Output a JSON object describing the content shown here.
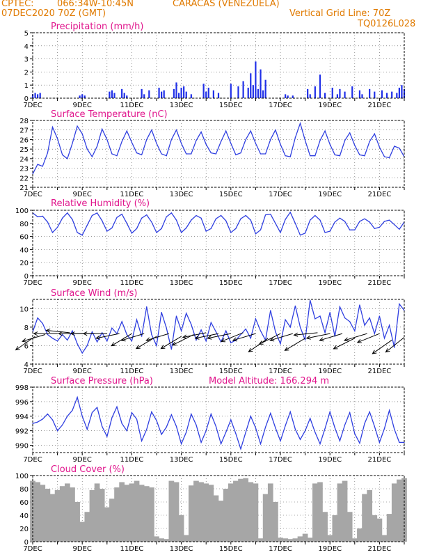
{
  "header": {
    "source": "CPTEC:",
    "coords": "066:34W-10:45N",
    "location": "CARACAS (VENEZUELA)",
    "init": "07DEC2020 70Z (GMT)",
    "grid_note": "Vertical Grid Line: 70Z",
    "code": "TQ0126L028"
  },
  "colors": {
    "header": "#e07a00",
    "panel_title": "#e0158c",
    "line": "#2f3fe0",
    "bar": "#1f2fe8",
    "cloud": "#a6a6a6"
  },
  "x_axis": {
    "ticks": [
      "7DEC",
      "9DEC",
      "11DEC",
      "13DEC",
      "15DEC",
      "17DEC",
      "19DEC",
      "21DEC"
    ],
    "day_start": 7,
    "day_end": 22
  },
  "chart_data": [
    {
      "type": "bar",
      "title": "Precipitation (mm/h)",
      "ylim": [
        0,
        5
      ],
      "yticks": [
        "0",
        "1",
        "2",
        "3",
        "4",
        "5"
      ],
      "grid": true,
      "x": [
        7.0,
        7.1,
        7.2,
        7.3,
        8.9,
        9.0,
        9.1,
        10.1,
        10.2,
        10.3,
        10.6,
        10.7,
        10.8,
        11.4,
        11.5,
        11.7,
        12.1,
        12.2,
        12.3,
        12.7,
        12.8,
        12.9,
        13.0,
        13.1,
        13.2,
        13.4,
        13.9,
        14.0,
        14.1,
        14.3,
        14.5,
        15.0,
        15.3,
        15.5,
        15.7,
        15.8,
        15.9,
        16.0,
        16.1,
        16.2,
        16.3,
        16.4,
        17.2,
        17.3,
        17.5,
        18.1,
        18.2,
        18.4,
        18.6,
        18.8,
        19.1,
        19.3,
        19.4,
        19.6,
        19.9,
        20.2,
        20.3,
        20.6,
        20.8,
        21.1,
        21.3,
        21.5,
        21.7,
        21.8,
        21.9,
        22.0
      ],
      "values": [
        0.3,
        0.4,
        0.3,
        0.4,
        0.2,
        0.3,
        0.2,
        0.5,
        0.6,
        0.4,
        0.7,
        0.4,
        0.2,
        0.7,
        0.3,
        0.6,
        0.8,
        0.5,
        0.6,
        0.7,
        1.2,
        0.4,
        0.8,
        0.9,
        0.5,
        0.3,
        1.1,
        0.5,
        0.8,
        0.6,
        0.4,
        1.1,
        0.9,
        1.3,
        0.8,
        1.9,
        1.0,
        2.8,
        0.7,
        2.2,
        0.6,
        1.4,
        0.3,
        0.2,
        0.2,
        0.7,
        0.3,
        0.9,
        1.8,
        0.4,
        0.8,
        0.3,
        0.7,
        0.5,
        0.9,
        0.6,
        0.3,
        0.7,
        0.5,
        0.6,
        0.4,
        0.5,
        0.4,
        0.8,
        1.0,
        0.7
      ]
    },
    {
      "type": "line",
      "title": "Surface Temperature (nC)",
      "ylim": [
        21,
        28
      ],
      "yticks": [
        "21",
        "22",
        "23",
        "24",
        "25",
        "26",
        "27",
        "28"
      ],
      "grid": true,
      "x": [
        7.0,
        7.2,
        7.4,
        7.6,
        7.8,
        8.0,
        8.2,
        8.4,
        8.6,
        8.8,
        9.0,
        9.2,
        9.4,
        9.6,
        9.8,
        10.0,
        10.2,
        10.4,
        10.6,
        10.8,
        11.0,
        11.2,
        11.4,
        11.6,
        11.8,
        12.0,
        12.2,
        12.4,
        12.6,
        12.8,
        13.0,
        13.2,
        13.4,
        13.6,
        13.8,
        14.0,
        14.2,
        14.4,
        14.6,
        14.8,
        15.0,
        15.2,
        15.4,
        15.6,
        15.8,
        16.0,
        16.2,
        16.4,
        16.6,
        16.8,
        17.0,
        17.2,
        17.4,
        17.6,
        17.8,
        18.0,
        18.2,
        18.4,
        18.6,
        18.8,
        19.0,
        19.2,
        19.4,
        19.6,
        19.8,
        20.0,
        20.2,
        20.4,
        20.6,
        20.8,
        21.0,
        21.2,
        21.4,
        21.6,
        21.8,
        22.0
      ],
      "values": [
        22.4,
        23.4,
        23.2,
        24.6,
        27.3,
        26.1,
        24.4,
        24.0,
        25.6,
        27.4,
        26.6,
        25.0,
        24.2,
        25.3,
        27.1,
        26.0,
        24.5,
        24.3,
        25.8,
        26.9,
        25.7,
        24.6,
        24.4,
        26.0,
        27.0,
        25.6,
        24.5,
        24.3,
        26.0,
        27.0,
        25.6,
        24.5,
        24.5,
        25.9,
        26.8,
        25.5,
        24.6,
        24.5,
        25.8,
        26.9,
        25.6,
        24.4,
        24.6,
        26.0,
        26.9,
        25.6,
        24.5,
        24.5,
        26.0,
        27.0,
        25.5,
        24.3,
        24.2,
        26.2,
        27.7,
        25.9,
        24.3,
        24.3,
        25.9,
        26.9,
        25.5,
        24.4,
        24.3,
        25.9,
        26.7,
        25.4,
        24.4,
        24.3,
        25.8,
        26.6,
        25.2,
        24.2,
        24.1,
        25.3,
        25.1,
        24.2
      ]
    },
    {
      "type": "line",
      "title": "Relative Humidity (%)",
      "ylim": [
        0,
        100
      ],
      "yticks": [
        "0",
        "20",
        "40",
        "60",
        "80",
        "100"
      ],
      "grid": true,
      "x": [
        7.0,
        7.2,
        7.4,
        7.6,
        7.8,
        8.0,
        8.2,
        8.4,
        8.6,
        8.8,
        9.0,
        9.2,
        9.4,
        9.6,
        9.8,
        10.0,
        10.2,
        10.4,
        10.6,
        10.8,
        11.0,
        11.2,
        11.4,
        11.6,
        11.8,
        12.0,
        12.2,
        12.4,
        12.6,
        12.8,
        13.0,
        13.2,
        13.4,
        13.6,
        13.8,
        14.0,
        14.2,
        14.4,
        14.6,
        14.8,
        15.0,
        15.2,
        15.4,
        15.6,
        15.8,
        16.0,
        16.2,
        16.4,
        16.6,
        16.8,
        17.0,
        17.2,
        17.4,
        17.6,
        17.8,
        18.0,
        18.2,
        18.4,
        18.6,
        18.8,
        19.0,
        19.2,
        19.4,
        19.6,
        19.8,
        20.0,
        20.2,
        20.4,
        20.6,
        20.8,
        21.0,
        21.2,
        21.4,
        21.6,
        21.8,
        22.0
      ],
      "values": [
        96,
        90,
        91,
        82,
        66,
        74,
        88,
        96,
        86,
        66,
        62,
        77,
        92,
        96,
        84,
        68,
        73,
        89,
        94,
        80,
        65,
        72,
        88,
        93,
        82,
        66,
        72,
        90,
        96,
        85,
        66,
        73,
        85,
        92,
        88,
        68,
        72,
        87,
        92,
        84,
        66,
        72,
        87,
        92,
        85,
        64,
        70,
        93,
        94,
        80,
        66,
        86,
        97,
        80,
        62,
        65,
        85,
        92,
        85,
        66,
        68,
        82,
        88,
        83,
        70,
        70,
        83,
        87,
        82,
        72,
        74,
        83,
        85,
        78,
        71,
        82
      ]
    },
    {
      "type": "line",
      "title": "Surface Wind (m/s)",
      "ylim": [
        4,
        11
      ],
      "yticks": [
        "4",
        "6",
        "8",
        "10"
      ],
      "grid": true,
      "x": [
        7.0,
        7.2,
        7.4,
        7.6,
        7.8,
        8.0,
        8.2,
        8.4,
        8.6,
        8.8,
        9.0,
        9.2,
        9.4,
        9.6,
        9.8,
        10.0,
        10.2,
        10.4,
        10.6,
        10.8,
        11.0,
        11.2,
        11.4,
        11.6,
        11.8,
        12.0,
        12.2,
        12.4,
        12.6,
        12.8,
        13.0,
        13.2,
        13.4,
        13.6,
        13.8,
        14.0,
        14.2,
        14.4,
        14.6,
        14.8,
        15.0,
        15.2,
        15.4,
        15.6,
        15.8,
        16.0,
        16.2,
        16.4,
        16.6,
        16.8,
        17.0,
        17.2,
        17.4,
        17.6,
        17.8,
        18.0,
        18.2,
        18.4,
        18.6,
        18.8,
        19.0,
        19.2,
        19.4,
        19.6,
        19.8,
        20.0,
        20.2,
        20.4,
        20.6,
        20.8,
        21.0,
        21.2,
        21.4,
        21.6,
        21.8,
        22.0
      ],
      "values": [
        7.5,
        9.0,
        8.4,
        7.2,
        6.8,
        6.5,
        7.2,
        6.6,
        7.6,
        6.2,
        5.2,
        6.0,
        7.5,
        6.4,
        7.4,
        6.5,
        7.9,
        7.3,
        8.6,
        7.2,
        6.5,
        8.8,
        7.0,
        10.2,
        7.2,
        6.0,
        9.6,
        7.9,
        5.6,
        9.2,
        7.6,
        9.5,
        8.3,
        6.6,
        7.7,
        6.5,
        8.5,
        7.5,
        6.4,
        7.6,
        6.3,
        6.6,
        7.2,
        7.8,
        6.8,
        8.9,
        7.6,
        6.6,
        9.8,
        7.5,
        6.2,
        8.8,
        8.0,
        10.3,
        8.0,
        6.6,
        10.9,
        8.9,
        9.2,
        7.4,
        9.6,
        7.0,
        10.2,
        9.0,
        8.6,
        7.6,
        10.4,
        8.2,
        9.0,
        7.3,
        9.2,
        6.8,
        8.2,
        5.8,
        10.5,
        9.8
      ],
      "wind_vectors": {
        "x": [
          7.1,
          7.5,
          8.0,
          8.5,
          9.0,
          9.5,
          10.0,
          10.5,
          11.0,
          11.5,
          12.0,
          12.5,
          13.0,
          13.5,
          14.0,
          14.5,
          15.0,
          15.5,
          16.0,
          16.5,
          17.0,
          17.5,
          18.0,
          18.5,
          19.0,
          19.5,
          20.0,
          20.5,
          21.0,
          21.5,
          22.0
        ],
        "y": [
          7.0,
          7.2,
          7.3,
          7.4,
          7.3,
          7.3,
          7.3,
          7.3,
          7.3,
          7.3,
          7.0,
          7.3,
          7.0,
          7.2,
          7.4,
          7.3,
          7.3,
          7.4,
          7.3,
          6.8,
          7.3,
          7.3,
          6.8,
          7.4,
          7.3,
          7.3,
          6.8,
          7.3,
          7.3,
          6.6,
          6.9
        ],
        "dx": [
          1.0,
          1.0,
          1.0,
          1.0,
          1.0,
          1.0,
          1.0,
          1.0,
          1.0,
          1.0,
          1.0,
          1.0,
          1.0,
          1.0,
          1.0,
          1.0,
          1.0,
          1.0,
          1.0,
          1.0,
          1.0,
          1.0,
          1.0,
          1.0,
          1.0,
          1.0,
          1.0,
          1.0,
          1.0,
          1.0,
          1.0
        ],
        "dy": [
          0.7,
          0.3,
          0.0,
          -0.1,
          0.0,
          0.0,
          0.0,
          0.2,
          0.6,
          0.3,
          0.6,
          0.3,
          0.6,
          0.5,
          0.2,
          0.2,
          0.2,
          0.4,
          0.3,
          0.7,
          0.5,
          0.3,
          0.6,
          0.1,
          0.2,
          0.3,
          0.5,
          0.3,
          0.4,
          0.7,
          0.8
        ]
      }
    },
    {
      "type": "line",
      "title": "Surface Pressure (hPa)",
      "annotation": "Model Altitude: 166.294 m",
      "ylim": [
        989,
        998
      ],
      "yticks": [
        "990",
        "992",
        "994",
        "996",
        "998"
      ],
      "grid": true,
      "x": [
        7.0,
        7.2,
        7.4,
        7.6,
        7.8,
        8.0,
        8.2,
        8.4,
        8.6,
        8.8,
        9.0,
        9.2,
        9.4,
        9.6,
        9.8,
        10.0,
        10.2,
        10.4,
        10.6,
        10.8,
        11.0,
        11.2,
        11.4,
        11.6,
        11.8,
        12.0,
        12.2,
        12.4,
        12.6,
        12.8,
        13.0,
        13.2,
        13.4,
        13.6,
        13.8,
        14.0,
        14.2,
        14.4,
        14.6,
        14.8,
        15.0,
        15.2,
        15.4,
        15.6,
        15.8,
        16.0,
        16.2,
        16.4,
        16.6,
        16.8,
        17.0,
        17.2,
        17.4,
        17.6,
        17.8,
        18.0,
        18.2,
        18.4,
        18.6,
        18.8,
        19.0,
        19.2,
        19.4,
        19.6,
        19.8,
        20.0,
        20.2,
        20.4,
        20.6,
        20.8,
        21.0,
        21.2,
        21.4,
        21.6,
        21.8,
        22.0
      ],
      "values": [
        993.0,
        993.2,
        993.6,
        994.3,
        993.5,
        992.0,
        992.8,
        994.0,
        994.8,
        996.6,
        994.0,
        992.2,
        994.5,
        995.2,
        992.6,
        991.2,
        993.8,
        995.3,
        993.0,
        992.0,
        994.5,
        993.6,
        990.6,
        992.2,
        994.6,
        993.4,
        991.5,
        992.5,
        994.2,
        992.6,
        990.2,
        991.8,
        994.3,
        992.8,
        990.4,
        992.0,
        994.3,
        992.6,
        990.2,
        991.8,
        993.5,
        991.6,
        989.5,
        991.8,
        994.0,
        992.4,
        990.2,
        992.5,
        994.4,
        992.4,
        990.6,
        992.7,
        994.6,
        992.2,
        990.8,
        992.0,
        993.7,
        991.8,
        990.2,
        992.3,
        994.6,
        992.4,
        990.6,
        992.8,
        994.5,
        991.6,
        990.3,
        993.0,
        994.6,
        992.6,
        990.4,
        992.3,
        994.8,
        992.2,
        990.4,
        990.4
      ]
    },
    {
      "type": "bar",
      "title": "Cloud Cover (%)",
      "ylim": [
        0,
        100
      ],
      "yticks": [
        "0",
        "20",
        "40",
        "60",
        "80",
        "100"
      ],
      "grid": true,
      "x": [
        7.0,
        7.2,
        7.4,
        7.6,
        7.8,
        8.0,
        8.2,
        8.4,
        8.6,
        8.8,
        9.0,
        9.2,
        9.4,
        9.6,
        9.8,
        10.0,
        10.2,
        10.4,
        10.6,
        10.8,
        11.0,
        11.2,
        11.4,
        11.6,
        11.8,
        12.0,
        12.2,
        12.4,
        12.6,
        12.8,
        13.0,
        13.2,
        13.4,
        13.6,
        13.8,
        14.0,
        14.2,
        14.4,
        14.6,
        14.8,
        15.0,
        15.2,
        15.4,
        15.6,
        15.8,
        16.0,
        16.2,
        16.4,
        16.6,
        16.8,
        17.0,
        17.2,
        17.4,
        17.6,
        17.8,
        18.0,
        18.2,
        18.4,
        18.6,
        18.8,
        19.0,
        19.2,
        19.4,
        19.6,
        19.8,
        20.0,
        20.2,
        20.4,
        20.6,
        20.8,
        21.0,
        21.2,
        21.4,
        21.6,
        21.8,
        22.0
      ],
      "values": [
        92,
        90,
        86,
        80,
        72,
        78,
        84,
        88,
        82,
        60,
        30,
        45,
        78,
        88,
        80,
        52,
        65,
        82,
        90,
        86,
        88,
        92,
        86,
        84,
        82,
        8,
        5,
        4,
        92,
        90,
        40,
        10,
        85,
        92,
        90,
        88,
        86,
        70,
        62,
        80,
        88,
        92,
        95,
        96,
        90,
        88,
        5,
        72,
        88,
        60,
        6,
        5,
        4,
        5,
        8,
        12,
        6,
        88,
        90,
        45,
        10,
        40,
        88,
        92,
        45,
        5,
        20,
        72,
        78,
        40,
        35,
        10,
        42,
        88,
        94,
        96
      ]
    }
  ]
}
